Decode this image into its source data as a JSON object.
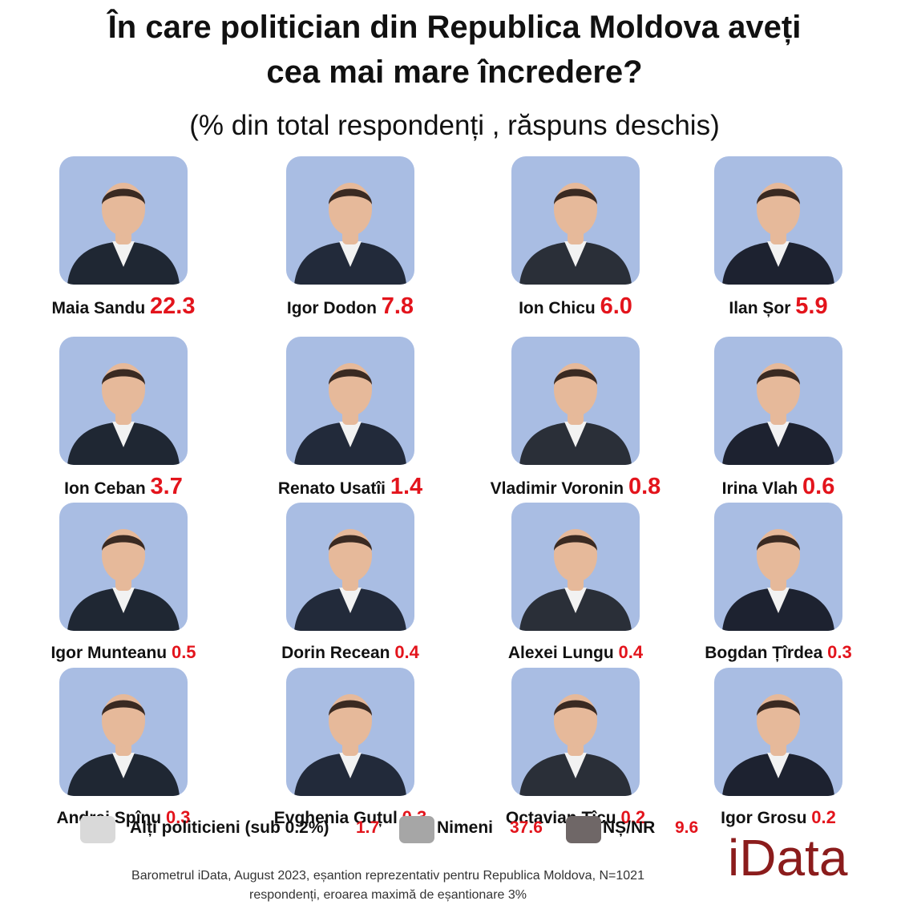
{
  "chart_data": {
    "type": "bar",
    "title": "În care politician din Republica Moldova aveți cea mai mare încredere?",
    "title_lines": [
      "În care politician din Republica Moldova aveți",
      "cea mai mare încredere?"
    ],
    "subtitle": "(% din total respondenți , răspuns deschis)",
    "xlabel": "",
    "ylabel": "% din total respondenți",
    "categories": [
      "Maia Sandu",
      "Igor Dodon",
      "Ion Chicu",
      "Ilan Șor",
      "Ion Ceban",
      "Renato Usatîi",
      "Vladimir Voronin",
      "Irina Vlah",
      "Igor Munteanu",
      "Dorin Recean",
      "Alexei Lungu",
      "Bogdan Țîrdea",
      "Andrei Spînu",
      "Evghenia Guțul",
      "Octavian Țîcu",
      "Igor Grosu"
    ],
    "values": [
      22.3,
      7.8,
      6.0,
      5.9,
      3.7,
      1.4,
      0.8,
      0.6,
      0.5,
      0.4,
      0.4,
      0.3,
      0.3,
      0.3,
      0.2,
      0.2
    ],
    "value_labels": [
      "22.3",
      "7.8",
      "6.0",
      "5.9",
      "3.7",
      "1.4",
      "0.8",
      "0.6",
      "0.5",
      "0.4",
      "0.4",
      "0.3",
      "0.3",
      "0.3",
      "0.2",
      "0.2"
    ],
    "legend": [
      {
        "label": "Alți politicieni (sub 0.2%)",
        "value": "1.7",
        "color": "#d9d9d9"
      },
      {
        "label": "Nimeni",
        "value": "37.6",
        "color": "#a6a6a6"
      },
      {
        "label": "NȘ/NR",
        "value": "9.6",
        "color": "#6f6767"
      }
    ],
    "legend_position": "bottom"
  },
  "footnote": {
    "line1": "Barometrul iData, August 2023, eșantion reprezentativ pentru Republica Moldova, N=1021",
    "line2": "respondenți, eroarea maximă de eșantionare 3%"
  },
  "logo": "iData",
  "colors": {
    "value": "#e3141c",
    "photo_bg": "#a9bde3",
    "logo": "#8b1c1c"
  }
}
